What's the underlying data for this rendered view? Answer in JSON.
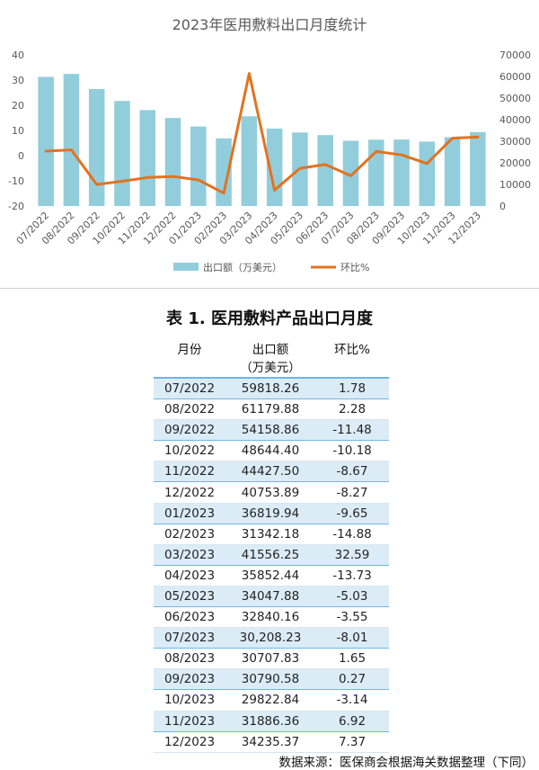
{
  "chart_data": {
    "type": "bar",
    "title": "2023年医用敷料出口月度统计",
    "categories": [
      "07/2022",
      "08/2022",
      "09/2022",
      "10/2022",
      "11/2022",
      "12/2022",
      "01/2023",
      "02/2023",
      "03/2023",
      "04/2023",
      "05/2023",
      "06/2023",
      "07/2023",
      "08/2023",
      "09/2023",
      "10/2023",
      "11/2023",
      "12/2023"
    ],
    "series": [
      {
        "name": "出口额（万美元）",
        "type": "bar",
        "axis": "right",
        "color": "#92cddc",
        "values": [
          59818.26,
          61179.88,
          54158.86,
          48644.4,
          44427.5,
          40753.89,
          36819.94,
          31342.18,
          41556.25,
          35852.44,
          34047.88,
          32840.16,
          30208.23,
          30707.83,
          30790.58,
          29822.84,
          31886.36,
          34235.37
        ]
      },
      {
        "name": "环比%",
        "type": "line",
        "axis": "left",
        "color": "#e2731f",
        "values": [
          1.78,
          2.28,
          -11.48,
          -10.18,
          -8.67,
          -8.27,
          -9.65,
          -14.88,
          32.59,
          -13.73,
          -5.03,
          -3.55,
          -8.01,
          1.65,
          0.27,
          -3.14,
          6.92,
          7.37
        ]
      }
    ],
    "left_axis": {
      "ylim": [
        -20,
        40
      ],
      "ticks": [
        "-20",
        "-10",
        "0",
        "10",
        "20",
        "30",
        "40"
      ]
    },
    "right_axis": {
      "ylim": [
        0,
        70000
      ],
      "ticks": [
        "0",
        "10000",
        "20000",
        "30000",
        "40000",
        "50000",
        "60000",
        "70000"
      ]
    },
    "legend_position": "bottom",
    "grid": false
  },
  "table": {
    "title": "表 1. 医用敷料产品出口月度",
    "headers": {
      "month": "月份",
      "value_line1": "出口额",
      "value_line2": "（万美元）",
      "mom": "环比%"
    },
    "rows": [
      {
        "month": "07/2022",
        "value": "59818.26",
        "mom": "1.78"
      },
      {
        "month": "08/2022",
        "value": "61179.88",
        "mom": "2.28"
      },
      {
        "month": "09/2022",
        "value": "54158.86",
        "mom": "-11.48"
      },
      {
        "month": "10/2022",
        "value": "48644.40",
        "mom": "-10.18"
      },
      {
        "month": "11/2022",
        "value": "44427.50",
        "mom": "-8.67"
      },
      {
        "month": "12/2022",
        "value": "40753.89",
        "mom": "-8.27"
      },
      {
        "month": "01/2023",
        "value": "36819.94",
        "mom": "-9.65"
      },
      {
        "month": "02/2023",
        "value": "31342.18",
        "mom": "-14.88"
      },
      {
        "month": "03/2023",
        "value": "41556.25",
        "mom": "32.59"
      },
      {
        "month": "04/2023",
        "value": "35852.44",
        "mom": "-13.73"
      },
      {
        "month": "05/2023",
        "value": "34047.88",
        "mom": "-5.03"
      },
      {
        "month": "06/2023",
        "value": "32840.16",
        "mom": "-3.55"
      },
      {
        "month": "07/2023",
        "value": "30,208.23",
        "mom": "-8.01"
      },
      {
        "month": "08/2023",
        "value": "30707.83",
        "mom": "1.65"
      },
      {
        "month": "09/2023",
        "value": "30790.58",
        "mom": "0.27"
      },
      {
        "month": "10/2023",
        "value": "29822.84",
        "mom": "-3.14"
      },
      {
        "month": "11/2023",
        "value": "31886.36",
        "mom": "6.92"
      },
      {
        "month": "12/2023",
        "value": "34235.37",
        "mom": "7.37"
      }
    ]
  },
  "source_note": "数据来源：医保商会根据海关数据整理（下同）"
}
